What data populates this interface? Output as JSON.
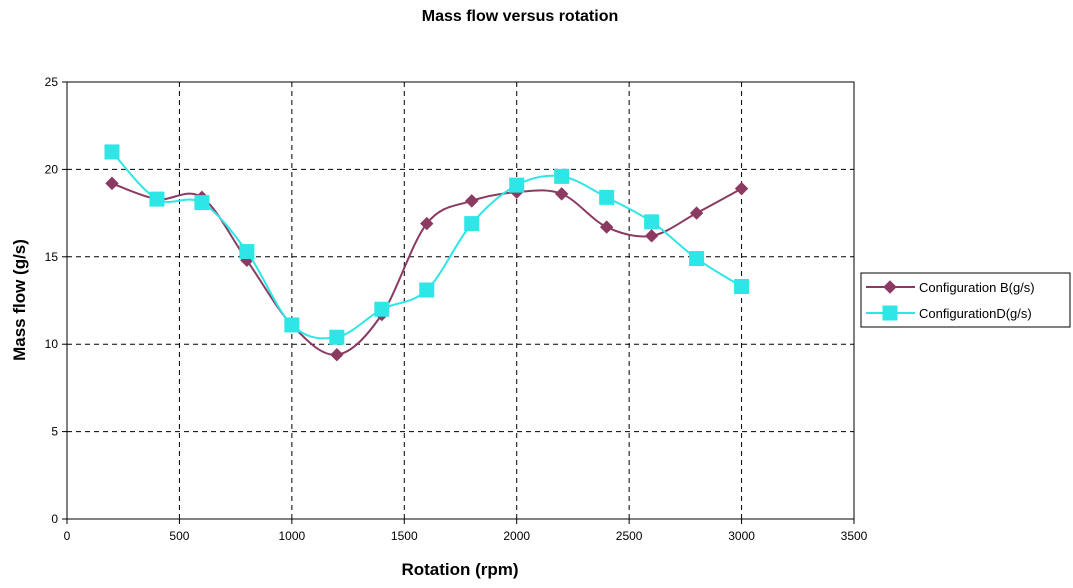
{
  "chart_data": {
    "type": "line",
    "title": "Mass flow versus rotation",
    "xlabel": "Rotation (rpm)",
    "ylabel": "Mass flow (g/s)",
    "xlim": [
      0,
      3500
    ],
    "ylim": [
      0,
      25
    ],
    "x_ticks": [
      0,
      500,
      1000,
      1500,
      2000,
      2500,
      3000,
      3500
    ],
    "y_ticks": [
      0,
      5,
      10,
      15,
      20,
      25
    ],
    "grid": true,
    "smoothed": true,
    "legend_position": "right",
    "x": [
      200,
      400,
      600,
      800,
      1000,
      1200,
      1400,
      1600,
      1800,
      2000,
      2200,
      2400,
      2600,
      2800,
      3000
    ],
    "series": [
      {
        "name": "Configuration B(g/s)",
        "color": "#8b3a62",
        "marker": "diamond",
        "values": [
          19.2,
          18.3,
          18.4,
          14.8,
          11.1,
          9.4,
          11.7,
          16.9,
          18.2,
          18.7,
          18.6,
          16.7,
          16.2,
          17.5,
          18.9
        ]
      },
      {
        "name": "ConfigurationD(g/s)",
        "color": "#2ee6e6",
        "marker": "square",
        "values": [
          21.0,
          18.3,
          18.1,
          15.3,
          11.1,
          10.4,
          12.0,
          13.1,
          16.9,
          19.1,
          19.6,
          18.4,
          17.0,
          14.9,
          13.3
        ]
      }
    ]
  }
}
